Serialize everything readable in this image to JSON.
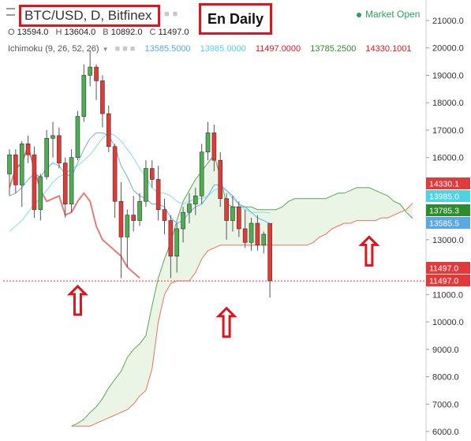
{
  "header": {
    "symbol_title": "BTC/USD, D, Bitfinex",
    "annotation_note": "En Daily",
    "market_status": "Market Open",
    "ohlc": [
      {
        "label": "O",
        "value": "13594.0"
      },
      {
        "label": "H",
        "value": "13604.0"
      },
      {
        "label": "B",
        "value": "10892.0"
      },
      {
        "label": "C",
        "value": "11497.0"
      }
    ],
    "indicator_name": "Ichimoku (9, 26, 52, 26)",
    "indicator_values": [
      {
        "value": "13585.5000",
        "color": "#5aa9e6"
      },
      {
        "value": "13985.0000",
        "color": "#4fd3e3"
      },
      {
        "value": "11497.0000",
        "color": "#e0141e"
      },
      {
        "value": "13785.2500",
        "color": "#2e8b2e"
      },
      {
        "value": "14330.1001",
        "color": "#e0141e"
      }
    ]
  },
  "chart_data": {
    "type": "candlestick",
    "y_range": [
      5900,
      21500
    ],
    "y_axis_ticks": [
      6000,
      7000,
      8000,
      9000,
      10000,
      11000,
      12000,
      13000,
      14000,
      15000,
      16000,
      17000,
      18000,
      19000,
      20000,
      21000
    ],
    "tick_label_decimals": 1,
    "price_tags": [
      {
        "value": 14330.1,
        "label": "14330.1",
        "bg": "#e23a3a",
        "fg": "#ffffff"
      },
      {
        "value": 13985.0,
        "label": "13985.0",
        "bg": "#4fd3e3",
        "fg": "#ffffff"
      },
      {
        "value": 13785.3,
        "label": "13785.3",
        "bg": "#2e8b2e",
        "fg": "#ffffff"
      },
      {
        "value": 13585.5,
        "label": "13585.5",
        "bg": "#5aa9e6",
        "fg": "#ffffff"
      },
      {
        "value": 11497.0,
        "label": "11497.0",
        "bg": "#e23a3a",
        "fg": "#ffffff"
      },
      {
        "value": 11497.0,
        "label": "11497.0",
        "bg": "#e23a3a",
        "fg": "#ffffff"
      }
    ],
    "last_price_line": 11497.0,
    "candles": [
      [
        15400,
        16300,
        14600,
        16100
      ],
      [
        16100,
        16300,
        14700,
        15000
      ],
      [
        15000,
        16600,
        14200,
        16500
      ],
      [
        16500,
        16800,
        15800,
        16100
      ],
      [
        16100,
        16400,
        13800,
        14100
      ],
      [
        14100,
        15400,
        13700,
        15300
      ],
      [
        15300,
        17000,
        15200,
        16700
      ],
      [
        16700,
        17300,
        16000,
        16800
      ],
      [
        16800,
        17100,
        15600,
        15800
      ],
      [
        15800,
        16000,
        13800,
        14300
      ],
      [
        14300,
        16300,
        14000,
        16000
      ],
      [
        16000,
        17700,
        15900,
        17500
      ],
      [
        17500,
        19400,
        17300,
        19000
      ],
      [
        19000,
        19900,
        18600,
        19300
      ],
      [
        19300,
        19400,
        18100,
        18800
      ],
      [
        18800,
        19000,
        17100,
        17600
      ],
      [
        17600,
        17900,
        16200,
        16400
      ],
      [
        16400,
        16500,
        13800,
        14400
      ],
      [
        14400,
        15100,
        11600,
        13100
      ],
      [
        13100,
        14100,
        12000,
        13900
      ],
      [
        13900,
        14600,
        13300,
        13700
      ],
      [
        13700,
        14700,
        13500,
        14400
      ],
      [
        14400,
        15900,
        14200,
        15600
      ],
      [
        15600,
        15900,
        14900,
        15200
      ],
      [
        15200,
        15700,
        13700,
        14100
      ],
      [
        14100,
        14500,
        13200,
        13700
      ],
      [
        13700,
        13900,
        11600,
        12400
      ],
      [
        12400,
        13600,
        11800,
        13400
      ],
      [
        13400,
        14200,
        12900,
        14000
      ],
      [
        14000,
        14700,
        13600,
        14300
      ],
      [
        14300,
        14900,
        13900,
        14600
      ],
      [
        14600,
        16500,
        14300,
        16200
      ],
      [
        16200,
        17300,
        15900,
        16900
      ],
      [
        16900,
        17200,
        15500,
        15900
      ],
      [
        15900,
        16200,
        14200,
        14500
      ],
      [
        14500,
        14700,
        13000,
        13700
      ],
      [
        13700,
        14600,
        13300,
        14200
      ],
      [
        14200,
        14400,
        13100,
        13400
      ],
      [
        13400,
        14100,
        12700,
        12900
      ],
      [
        12900,
        13800,
        12600,
        13600
      ],
      [
        13600,
        13900,
        12600,
        12800
      ],
      [
        12800,
        13300,
        12500,
        13200
      ],
      [
        13594,
        13604,
        10892,
        11497
      ]
    ],
    "tenkan_sen": [
      14600,
      14700,
      14900,
      15200,
      15400,
      15300,
      15600,
      15800,
      15700,
      15400,
      15300,
      15800,
      16300,
      16700,
      16900,
      16900,
      16800,
      16400,
      15700,
      15300,
      14800,
      14600,
      14500,
      14300,
      14300,
      14200,
      13800,
      13600,
      13700,
      14000,
      14200,
      14300,
      14600,
      15000,
      15000,
      14800,
      14600,
      14300,
      14200,
      14000,
      13800,
      13700,
      13585.5
    ],
    "kijun_sen": [
      13300,
      13500,
      13700,
      14000,
      14300,
      14500,
      14800,
      15100,
      15300,
      15400,
      15600,
      15700,
      15900,
      16100,
      16400,
      16700,
      16900,
      16800,
      16600,
      16300,
      16000,
      15600,
      15300,
      14900,
      14700,
      14700,
      14600,
      14400,
      14300,
      14400,
      14500,
      14500,
      14600,
      14800,
      14900,
      14800,
      14500,
      14300,
      14100,
      14000,
      14000,
      14000,
      13985
    ],
    "chikou_span": [
      14900,
      15600,
      15800,
      16400,
      15600,
      14800,
      14400,
      14500,
      14600,
      13900,
      14000,
      14400,
      14700,
      14400,
      13500,
      13000,
      12800,
      12600,
      12400,
      12000,
      11800,
      11600
    ],
    "senkou_span_a": [
      6200,
      6300,
      6450,
      6700,
      6900,
      7200,
      7600,
      7900,
      8200,
      8700,
      9000,
      9200,
      9500,
      10600,
      11600,
      12300,
      12900,
      13700,
      14400,
      14800,
      15200,
      15500,
      15800,
      16100,
      15300,
      14300,
      14200,
      14200,
      14200,
      14200,
      14100,
      14100,
      14100,
      14100,
      14200,
      14400,
      14500,
      14500,
      14500,
      14500,
      14500,
      14500,
      14600,
      14700,
      14700,
      14800,
      14900,
      14900,
      14900,
      14800,
      14700,
      14600,
      14400,
      14300,
      14000,
      13785.25
    ],
    "senkou_span_b": [
      6200,
      6200,
      6200,
      6200,
      6300,
      6400,
      6500,
      6600,
      6700,
      6800,
      7000,
      7300,
      7500,
      8300,
      10000,
      11000,
      11400,
      11500,
      11500,
      11500,
      11800,
      12300,
      12600,
      12700,
      12800,
      12800,
      12800,
      12800,
      12800,
      12800,
      12800,
      12800,
      12800,
      12800,
      12800,
      12800,
      12800,
      12800,
      12800,
      12900,
      13100,
      13200,
      13400,
      13500,
      13600,
      13600,
      13700,
      13700,
      13700,
      13700,
      13800,
      13800,
      13900,
      14000,
      14100,
      14330.1
    ]
  }
}
